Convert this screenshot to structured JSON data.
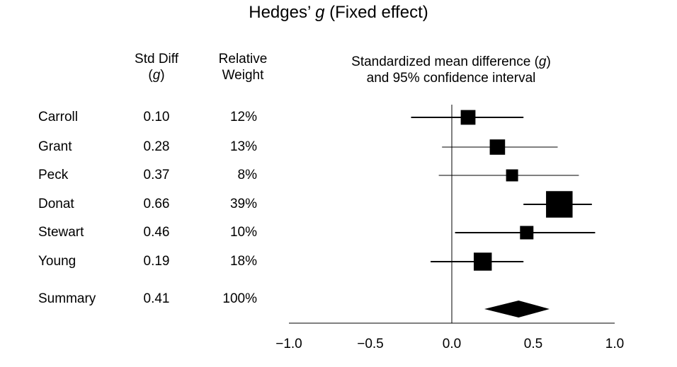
{
  "title": {
    "prefix": "Hedges’ ",
    "italic": "g",
    "suffix": " (Fixed effect)"
  },
  "headers": {
    "std_diff_line1": "Std Diff",
    "std_diff_line2_pre": "(",
    "std_diff_line2_it": "g",
    "std_diff_line2_post": ")",
    "weight_line1": "Relative",
    "weight_line2": "Weight",
    "plot_line1_pre": "Standardized mean difference (",
    "plot_line1_it": "g",
    "plot_line1_post": ")",
    "plot_line2": "and 95% confidence interval"
  },
  "chart_data": {
    "type": "forest",
    "xlim": [
      -1.0,
      1.0
    ],
    "x_ticks": [
      -1.0,
      -0.5,
      0.0,
      0.5,
      1.0
    ],
    "x_tick_labels": [
      "−1.0",
      "−0.5",
      "0.0",
      "0.5",
      "1.0"
    ],
    "reference_line": 0.0,
    "studies": [
      {
        "name": "Carroll",
        "g": 0.1,
        "g_label": "0.10",
        "weight": 12,
        "weight_label": "12%",
        "ci": [
          -0.25,
          0.44
        ]
      },
      {
        "name": "Grant",
        "g": 0.28,
        "g_label": "0.28",
        "weight": 13,
        "weight_label": "13%",
        "ci": [
          -0.06,
          0.65
        ]
      },
      {
        "name": "Peck",
        "g": 0.37,
        "g_label": "0.37",
        "weight": 8,
        "weight_label": "8%",
        "ci": [
          -0.08,
          0.78
        ]
      },
      {
        "name": "Donat",
        "g": 0.66,
        "g_label": "0.66",
        "weight": 39,
        "weight_label": "39%",
        "ci": [
          0.44,
          0.86
        ]
      },
      {
        "name": "Stewart",
        "g": 0.46,
        "g_label": "0.46",
        "weight": 10,
        "weight_label": "10%",
        "ci": [
          0.02,
          0.88
        ]
      },
      {
        "name": "Young",
        "g": 0.19,
        "g_label": "0.19",
        "weight": 18,
        "weight_label": "18%",
        "ci": [
          -0.13,
          0.44
        ]
      }
    ],
    "summary": {
      "name": "Summary",
      "g": 0.41,
      "g_label": "0.41",
      "weight_label": "100%",
      "ci": [
        0.2,
        0.6
      ]
    }
  }
}
